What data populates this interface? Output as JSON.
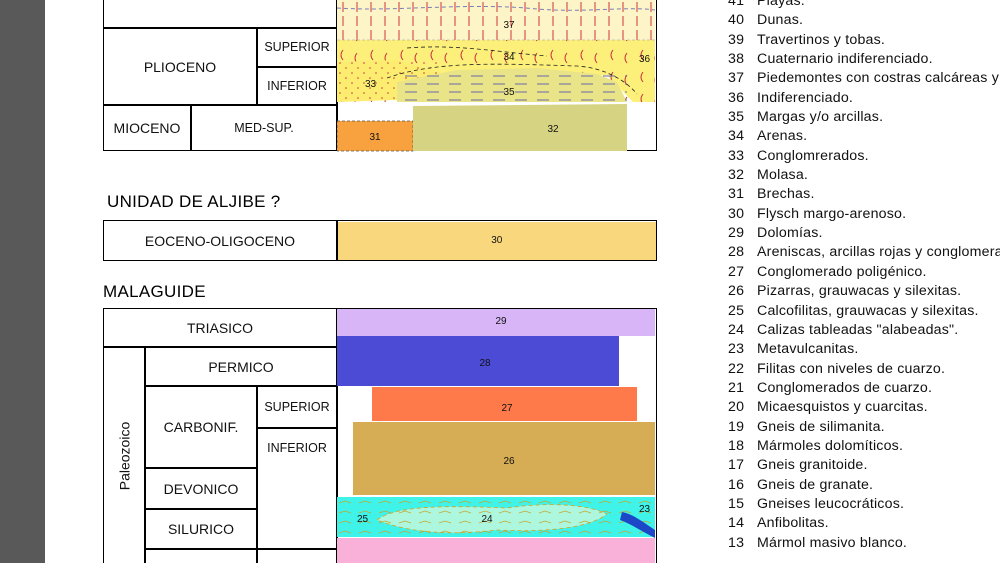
{
  "top_table": {
    "plioceno": "PLIOCENO",
    "superior": "SUPERIOR",
    "inferior": "INFERIOR",
    "mioceno": "MIOCENO",
    "med_sup": "MED-SUP.",
    "units": [
      "37",
      "34",
      "36",
      "33",
      "35",
      "31",
      "32"
    ]
  },
  "aljibe": {
    "title": "UNIDAD DE ALJIBE ?",
    "age": "EOCENO-OLIGOCENO",
    "unit": "30"
  },
  "malaguide": {
    "title": "MALAGUIDE",
    "triasico": "TRIASICO",
    "paleozoico": "Paleozoico",
    "permico": "PERMICO",
    "carbonif": "CARBONIF.",
    "superior": "SUPERIOR",
    "inferior": "INFERIOR",
    "devonico": "DEVONICO",
    "silurico": "SILURICO",
    "units": [
      "29",
      "28",
      "27",
      "26",
      "25",
      "24",
      "23"
    ]
  },
  "legend": [
    {
      "num": "41",
      "text": "Playas."
    },
    {
      "num": "40",
      "text": "Dunas."
    },
    {
      "num": "39",
      "text": "Travertinos y tobas."
    },
    {
      "num": "38",
      "text": "Cuaternario indiferenciado."
    },
    {
      "num": "37",
      "text": "Piedemontes con costras calcáreas y d"
    },
    {
      "num": "36",
      "text": "Indiferenciado."
    },
    {
      "num": "35",
      "text": "Margas y/o arcillas."
    },
    {
      "num": "34",
      "text": "Arenas."
    },
    {
      "num": "33",
      "text": "Conglomrerados."
    },
    {
      "num": "32",
      "text": "Molasa."
    },
    {
      "num": "31",
      "text": "Brechas."
    },
    {
      "num": "30",
      "text": "Flysch margo-arenoso."
    },
    {
      "num": "29",
      "text": "Dolomías."
    },
    {
      "num": "28",
      "text": "Areniscas, arcillas rojas y conglomerad"
    },
    {
      "num": "27",
      "text": "Conglomerado poligénico."
    },
    {
      "num": "26",
      "text": "Pizarras, grauwacas y silexitas."
    },
    {
      "num": "25",
      "text": "Calcofilitas, grauwacas y silexitas."
    },
    {
      "num": "24",
      "text": "Calizas tableadas \"alabeadas\"."
    },
    {
      "num": "23",
      "text": "Metavulcanitas."
    },
    {
      "num": "22",
      "text": "Filitas con niveles de cuarzo."
    },
    {
      "num": "21",
      "text": "Conglomerados de cuarzo."
    },
    {
      "num": "20",
      "text": "Micaesquistos y cuarcitas."
    },
    {
      "num": "19",
      "text": "Gneis de silimanita."
    },
    {
      "num": "18",
      "text": "Mármoles dolomíticos."
    },
    {
      "num": "17",
      "text": "Gneis granitoide."
    },
    {
      "num": "16",
      "text": "Gneis de granate."
    },
    {
      "num": "15",
      "text": "Gneises leucocráticos."
    },
    {
      "num": "14",
      "text": "Anfibolitas."
    },
    {
      "num": "13",
      "text": "Mármol masivo blanco."
    }
  ],
  "colors": {
    "background": "#595959",
    "u37": "#fdf4c7",
    "u34": "#fcf07a",
    "u33": "#fced71",
    "u35": "#e9e488",
    "u31": "#f7a13f",
    "u32": "#d6d482",
    "u30": "#f9d77d",
    "u29": "#d7b5f7",
    "u28": "#4b4bd6",
    "u27": "#ff7a4b",
    "u26": "#d6ad55",
    "u25": "#3ff3e8",
    "u24": "#adf7df",
    "u23": "#1c47c7",
    "silurian_base": "#f9b0d9"
  }
}
